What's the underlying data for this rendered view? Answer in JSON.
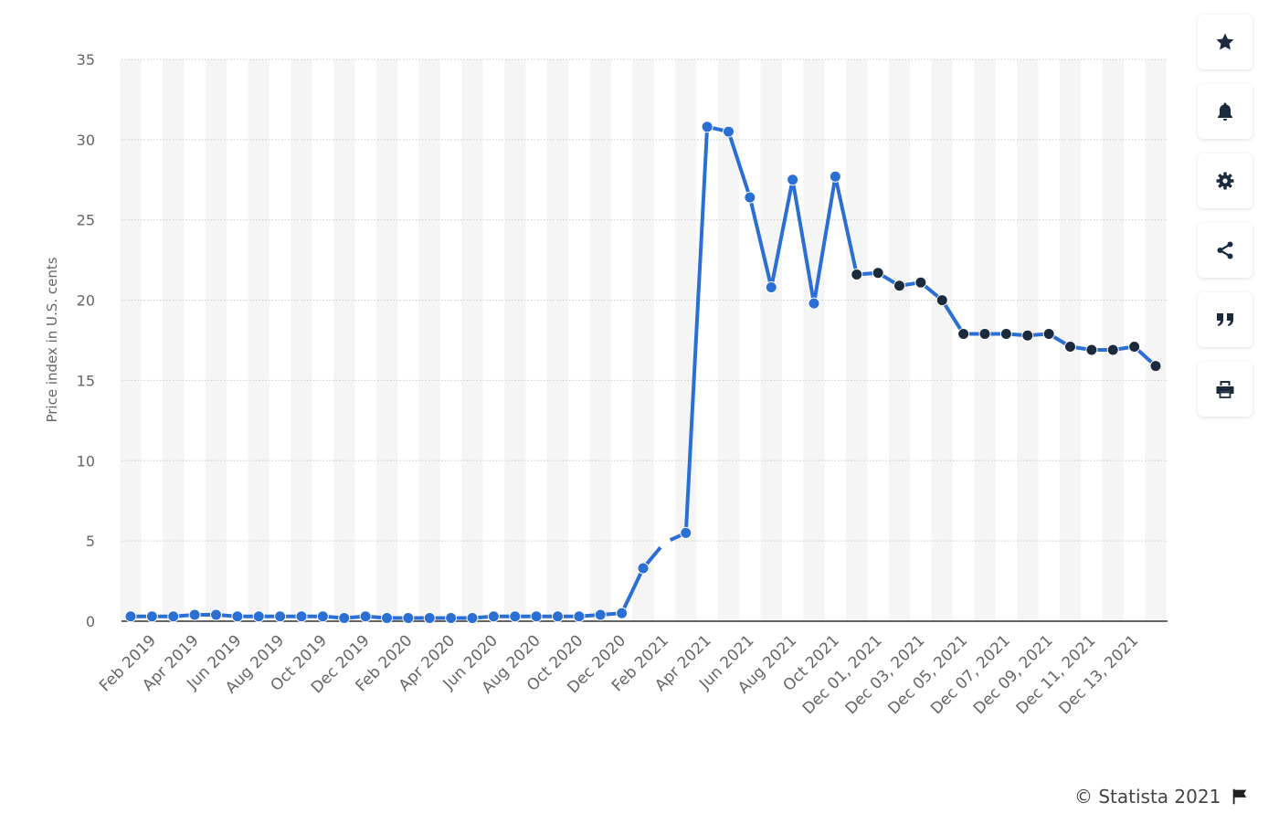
{
  "chart_data": {
    "type": "line",
    "ylabel": "Price index in U.S. cents",
    "ylim": [
      0,
      35
    ],
    "y_ticks": [
      0,
      5,
      10,
      15,
      20,
      25,
      30,
      35
    ],
    "grid": "horizontal dotted",
    "x_tick_labels": [
      "Feb 2019",
      "Apr 2019",
      "Jun 2019",
      "Aug 2019",
      "Oct 2019",
      "Dec 2019",
      "Feb 2020",
      "Apr 2020",
      "Jun 2020",
      "Aug 2020",
      "Oct 2020",
      "Dec 2020",
      "Feb 2021",
      "Apr 2021",
      "Jun 2021",
      "Aug 2021",
      "Oct 2021",
      "Dec 01, 2021",
      "Dec 03, 2021",
      "Dec 05, 2021",
      "Dec 07, 2021",
      "Dec 09, 2021",
      "Dec 11, 2021",
      "Dec 13, 2021"
    ],
    "series": [
      {
        "line_color": "#2b6fd4",
        "points": [
          {
            "x": "Jan 2019",
            "y": 0.3,
            "color": "#2b6fd4"
          },
          {
            "x": "Feb 2019",
            "y": 0.3,
            "color": "#2b6fd4"
          },
          {
            "x": "Mar 2019",
            "y": 0.3,
            "color": "#2b6fd4"
          },
          {
            "x": "Apr 2019",
            "y": 0.4,
            "color": "#2b6fd4"
          },
          {
            "x": "May 2019",
            "y": 0.4,
            "color": "#2b6fd4"
          },
          {
            "x": "Jun 2019",
            "y": 0.3,
            "color": "#2b6fd4"
          },
          {
            "x": "Jul 2019",
            "y": 0.3,
            "color": "#2b6fd4"
          },
          {
            "x": "Aug 2019",
            "y": 0.3,
            "color": "#2b6fd4"
          },
          {
            "x": "Sep 2019",
            "y": 0.3,
            "color": "#2b6fd4"
          },
          {
            "x": "Oct 2019",
            "y": 0.3,
            "color": "#2b6fd4"
          },
          {
            "x": "Nov 2019",
            "y": 0.2,
            "color": "#2b6fd4"
          },
          {
            "x": "Dec 2019",
            "y": 0.3,
            "color": "#2b6fd4"
          },
          {
            "x": "Jan 2020",
            "y": 0.2,
            "color": "#2b6fd4"
          },
          {
            "x": "Feb 2020",
            "y": 0.2,
            "color": "#2b6fd4"
          },
          {
            "x": "Mar 2020",
            "y": 0.2,
            "color": "#2b6fd4"
          },
          {
            "x": "Apr 2020",
            "y": 0.2,
            "color": "#2b6fd4"
          },
          {
            "x": "May 2020",
            "y": 0.2,
            "color": "#2b6fd4"
          },
          {
            "x": "Jun 2020",
            "y": 0.3,
            "color": "#2b6fd4"
          },
          {
            "x": "Jul 2020",
            "y": 0.3,
            "color": "#2b6fd4"
          },
          {
            "x": "Aug 2020",
            "y": 0.3,
            "color": "#2b6fd4"
          },
          {
            "x": "Sep 2020",
            "y": 0.3,
            "color": "#2b6fd4"
          },
          {
            "x": "Oct 2020",
            "y": 0.3,
            "color": "#2b6fd4"
          },
          {
            "x": "Nov 2020",
            "y": 0.4,
            "color": "#2b6fd4"
          },
          {
            "x": "Dec 2020",
            "y": 0.5,
            "color": "#2b6fd4"
          },
          {
            "x": "Jan 2021",
            "y": 3.3,
            "color": "#2b6fd4"
          },
          {
            "x": "Feb 2021",
            "y": 4.9,
            "color": "#ffffff"
          },
          {
            "x": "Mar 2021",
            "y": 5.5,
            "color": "#2b6fd4"
          },
          {
            "x": "Apr 2021",
            "y": 30.8,
            "color": "#2b6fd4"
          },
          {
            "x": "May 2021",
            "y": 30.5,
            "color": "#2b6fd4"
          },
          {
            "x": "Jun 2021",
            "y": 26.4,
            "color": "#2b6fd4"
          },
          {
            "x": "Jul 2021",
            "y": 20.8,
            "color": "#2b6fd4"
          },
          {
            "x": "Aug 2021",
            "y": 27.5,
            "color": "#2b6fd4"
          },
          {
            "x": "Sep 2021",
            "y": 19.8,
            "color": "#2b6fd4"
          },
          {
            "x": "Oct 2021",
            "y": 27.7,
            "color": "#2b6fd4"
          },
          {
            "x": "Nov 2021",
            "y": 21.6,
            "color": "#1b2a3d"
          },
          {
            "x": "Dec 01, 2021",
            "y": 21.7,
            "color": "#1b2a3d"
          },
          {
            "x": "Dec 02, 2021",
            "y": 20.9,
            "color": "#1b2a3d"
          },
          {
            "x": "Dec 03, 2021",
            "y": 21.1,
            "color": "#1b2a3d"
          },
          {
            "x": "Dec 04, 2021",
            "y": 20.0,
            "color": "#1b2a3d"
          },
          {
            "x": "Dec 05, 2021",
            "y": 17.9,
            "color": "#1b2a3d"
          },
          {
            "x": "Dec 06, 2021",
            "y": 17.9,
            "color": "#1b2a3d"
          },
          {
            "x": "Dec 07, 2021",
            "y": 17.9,
            "color": "#1b2a3d"
          },
          {
            "x": "Dec 08, 2021",
            "y": 17.8,
            "color": "#1b2a3d"
          },
          {
            "x": "Dec 09, 2021",
            "y": 17.9,
            "color": "#1b2a3d"
          },
          {
            "x": "Dec 10, 2021",
            "y": 17.1,
            "color": "#1b2a3d"
          },
          {
            "x": "Dec 11, 2021",
            "y": 16.9,
            "color": "#1b2a3d"
          },
          {
            "x": "Dec 12, 2021",
            "y": 16.9,
            "color": "#1b2a3d"
          },
          {
            "x": "Dec 13, 2021",
            "y": 17.1,
            "color": "#1b2a3d"
          },
          {
            "x": "Dec 14, 2021",
            "y": 15.9,
            "color": "#1b2a3d"
          }
        ]
      }
    ]
  },
  "toolbar": {
    "buttons": [
      {
        "icon": "star-icon"
      },
      {
        "icon": "bell-icon"
      },
      {
        "icon": "gear-icon"
      },
      {
        "icon": "share-icon"
      },
      {
        "icon": "quote-icon"
      },
      {
        "icon": "print-icon"
      }
    ]
  },
  "footer": {
    "copyright": "© Statista 2021",
    "flag_icon": "flag-icon"
  }
}
